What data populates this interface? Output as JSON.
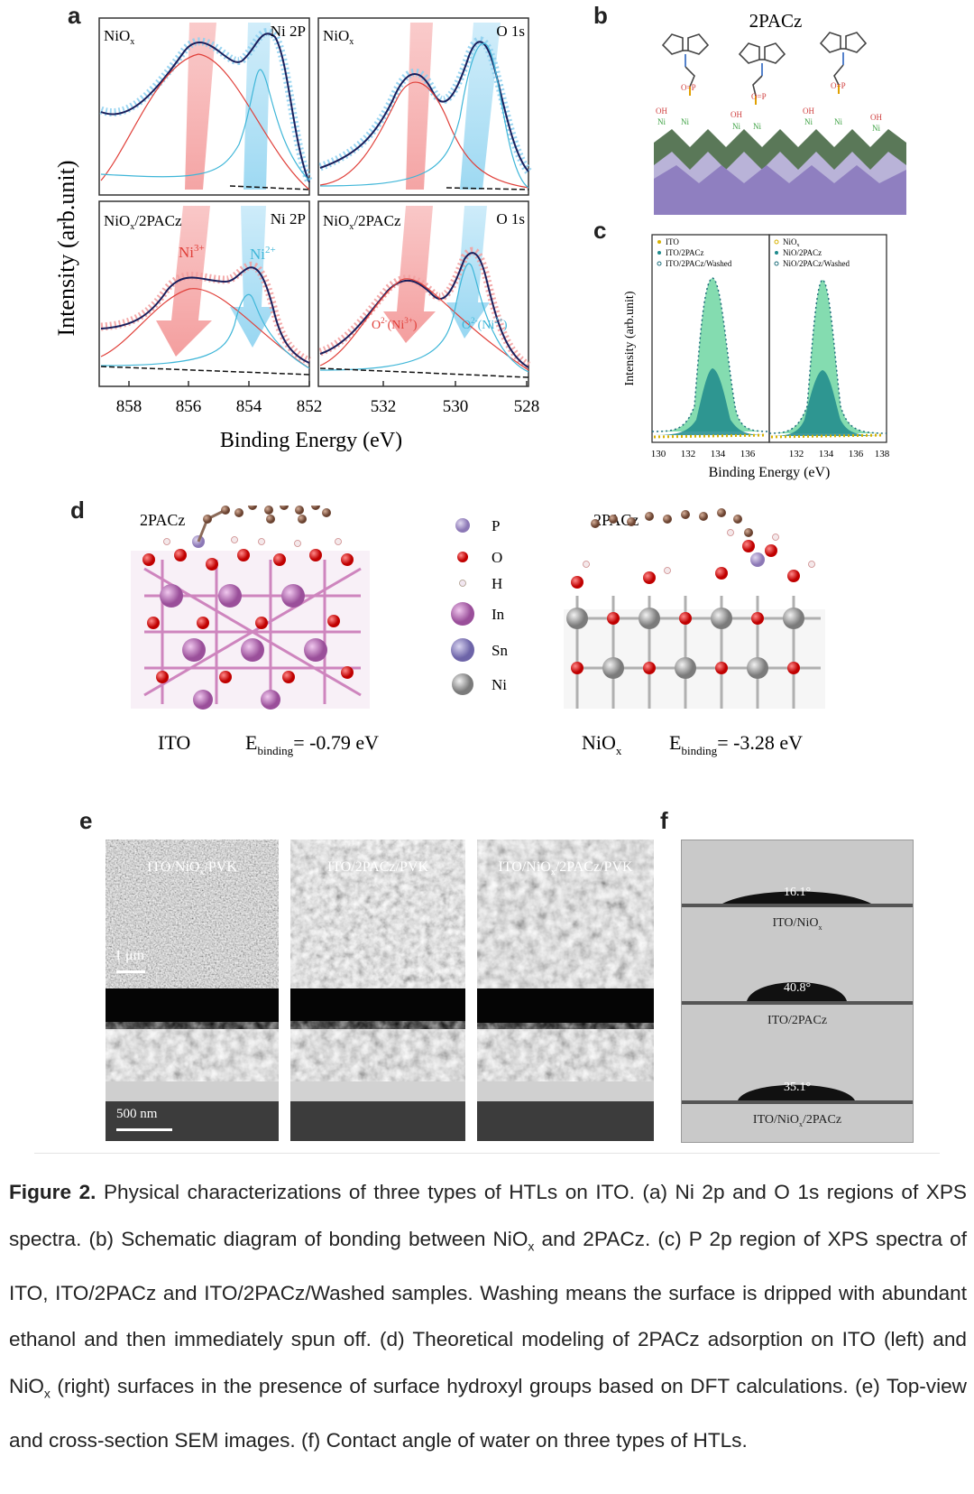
{
  "panels": {
    "a": {
      "label": "a",
      "y_label": "Intensity (arb.unit)",
      "x_label": "Binding Energy (eV)",
      "subplots": [
        {
          "sample": "NiO",
          "sample_sub": "x",
          "region": "Ni 2P"
        },
        {
          "sample": "NiO",
          "sample_sub": "x",
          "region": "O 1s"
        },
        {
          "sample": "NiO",
          "sample_sub": "x",
          "sample_suffix": "/2PACz",
          "region": "Ni 2P",
          "ann1": "Ni",
          "ann1_sup": "3+",
          "ann2": "Ni",
          "ann2_sup": "2+"
        },
        {
          "sample": "NiO",
          "sample_sub": "x",
          "sample_suffix": "/2PACz",
          "region": "O 1s",
          "ann1": "O",
          "ann1_sup": "2-",
          "ann1_tail": "(Ni",
          "ann1_tail_sup": "3+",
          "ann1_close": ")",
          "ann2": "O",
          "ann2_sup": "2-",
          "ann2_tail": "(Ni",
          "ann2_tail_sup": "2+",
          "ann2_close": ")"
        }
      ],
      "ni_ticks": [
        "858",
        "856",
        "854",
        "852"
      ],
      "o_ticks": [
        "532",
        "530",
        "528"
      ]
    },
    "b": {
      "label": "b",
      "title": "2PACz",
      "hydroxyl": "OH",
      "po3": "O=P",
      "ni": "Ni"
    },
    "c": {
      "label": "c",
      "y_label": "Intensity (arb.unit)",
      "x_label": "Binding Energy (eV)",
      "left_legend": [
        "ITO",
        "ITO/2PACz",
        "ITO/2PACz/Washed"
      ],
      "right_legend": [
        "NiO",
        "NiO/2PACz",
        "NiO/2PACz/Washed"
      ],
      "right_legend_sub": "x",
      "left_ticks": [
        "130",
        "132",
        "134",
        "136"
      ],
      "right_ticks": [
        "132",
        "134",
        "136",
        "138"
      ]
    },
    "d": {
      "label": "d",
      "left_title": "2PACz",
      "right_title": "2PACz",
      "legend": [
        "P",
        "O",
        "H",
        "In",
        "Sn",
        "Ni"
      ],
      "left_substrate": "ITO",
      "right_substrate": "NiO",
      "right_substrate_sub": "x",
      "e_symbol": "E",
      "e_sub": "binding",
      "left_energy": "= -0.79 eV",
      "right_energy": "= -3.28 eV"
    },
    "e": {
      "label": "e",
      "images": [
        {
          "title": "ITO/NiO",
          "title_sub": "x",
          "title_suffix": "/PVK"
        },
        {
          "title": "ITO/2PACz/PVK"
        },
        {
          "title": "ITO/NiO",
          "title_sub": "x",
          "title_suffix": "/2PACz/PVK"
        }
      ],
      "scale_top": "1 μm",
      "scale_bottom": "500 nm"
    },
    "f": {
      "label": "f",
      "drops": [
        {
          "angle": "16.1°",
          "label": "ITO/NiO",
          "label_sub": "x"
        },
        {
          "angle": "40.8°",
          "label": "ITO/2PACz"
        },
        {
          "angle": "35.1°",
          "label": "ITO/NiO",
          "label_sub": "x",
          "label_suffix": "/2PACz"
        }
      ]
    }
  },
  "caption": {
    "lead": "Figure 2.",
    "p1": " Physical characterizations of three types of HTLs on ITO. (a) Ni 2p and O 1s regions of XPS spectra. (b) Schematic diagram of bonding between NiO",
    "sub1": "x",
    "p2": " and 2PACz. (c) P 2p region of XPS spectra of ITO, ITO/2PACz and ITO/2PACz/Washed samples. Washing means the surface is dripped with abundant ethanol and then immediately spun off. (d) Theoretical modeling of 2PACz adsorption on ITO (left) and NiO",
    "sub2": "x",
    "p3": " (right) surfaces in the presence of surface hydroxyl groups based on DFT calculations. (e) Top-view and cross-section SEM images. (f) Contact angle of water on three types of HTLs."
  },
  "colors": {
    "red": "#e0403a",
    "cyan": "#3fb6d8",
    "navy": "#1a1f5c",
    "pink": "#f2a0a0",
    "lightblue": "#a9d8f0",
    "green": "#6fd6a2",
    "teal": "#1f8a8c",
    "gold": "#d7b100"
  }
}
